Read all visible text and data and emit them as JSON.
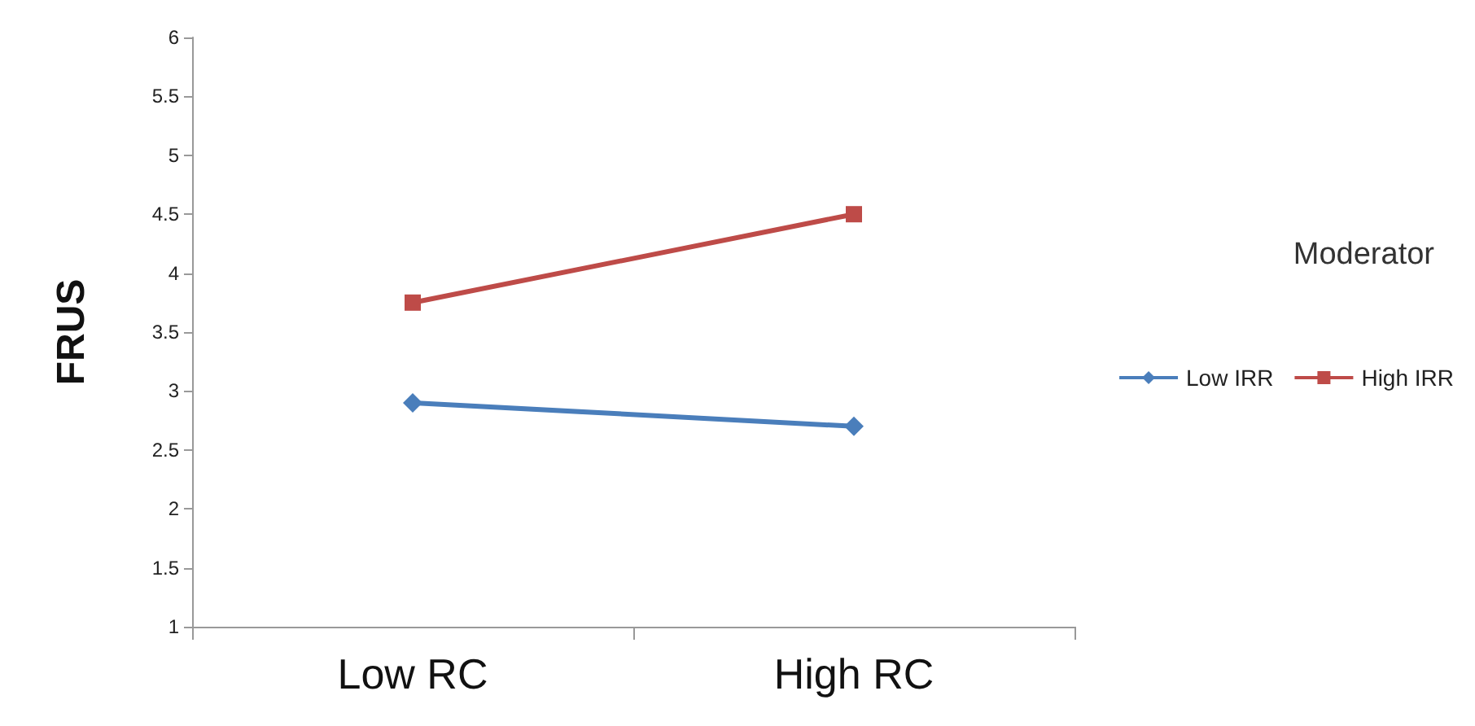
{
  "chart_data": {
    "type": "line",
    "ylabel": "FRUS",
    "legend_title": "Moderator",
    "categories": [
      "Low RC",
      "High RC"
    ],
    "series": [
      {
        "name": "Low IRR",
        "color": "#4a7ebb",
        "values": [
          2.9,
          2.7
        ],
        "marker": "diamond"
      },
      {
        "name": "High IRR",
        "color": "#be4b48",
        "values": [
          3.75,
          4.5
        ],
        "marker": "square"
      }
    ],
    "ylim": [
      1,
      6
    ],
    "yticks": [
      1,
      1.5,
      2,
      2.5,
      3,
      3.5,
      4,
      4.5,
      5,
      5.5,
      6
    ],
    "grid": false,
    "legend": "right"
  }
}
